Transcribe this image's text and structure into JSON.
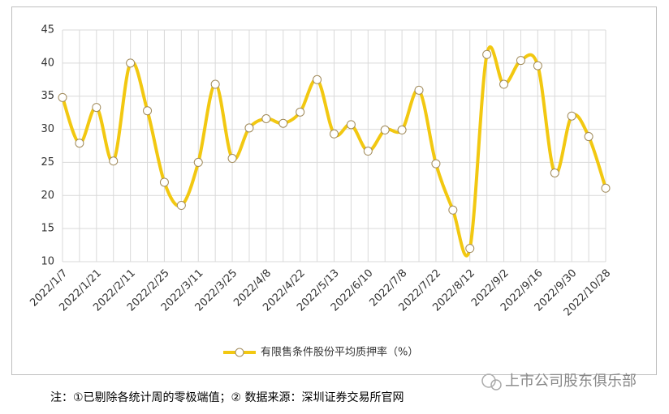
{
  "chart_data": {
    "type": "line",
    "categories": [
      "2022/1/7",
      null,
      "2022/1/21",
      null,
      "2022/2/11",
      null,
      "2022/2/25",
      null,
      "2022/3/11",
      null,
      "2022/3/25",
      null,
      "2022/4/8",
      null,
      "2022/4/22",
      null,
      "2022/5/13",
      null,
      "2022/6/10",
      null,
      "2022/7/8",
      null,
      "2022/7/22",
      null,
      "2022/8/12",
      null,
      "2022/9/2",
      null,
      "2022/9/16",
      null,
      "2022/9/30",
      null,
      "2022/10/28"
    ],
    "series": [
      {
        "name": "有限售条件股份平均质押率（%）",
        "color": "#f2c811",
        "values": [
          34.8,
          27.9,
          33.3,
          25.2,
          40.0,
          32.8,
          22.0,
          18.5,
          25.0,
          36.8,
          25.6,
          30.2,
          31.6,
          30.9,
          32.6,
          37.5,
          29.3,
          30.7,
          26.7,
          29.9,
          29.9,
          35.9,
          24.8,
          17.8,
          12.0,
          41.3,
          36.8,
          40.4,
          39.6,
          23.4,
          32.0,
          28.9,
          21.1
        ]
      }
    ],
    "ylim": [
      10,
      45
    ],
    "yticks": [
      10,
      15,
      20,
      25,
      30,
      35,
      40,
      45
    ],
    "grid": true,
    "legend": "bottom"
  },
  "footnote": "注：①已剔除各统计周的零极端值；② 数据来源：深圳证券交易所官网",
  "watermark": "上市公司股东俱乐部"
}
